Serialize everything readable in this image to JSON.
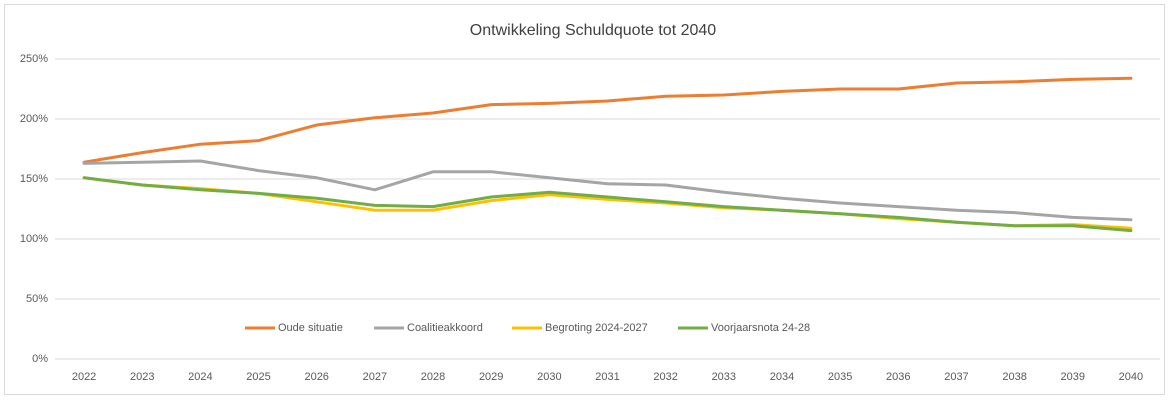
{
  "chart_data": {
    "type": "line",
    "title": "Ontwikkeling Schuldquote tot 2040",
    "categories": [
      "2022",
      "2023",
      "2024",
      "2025",
      "2026",
      "2027",
      "2028",
      "2029",
      "2030",
      "2031",
      "2032",
      "2033",
      "2034",
      "2035",
      "2036",
      "2037",
      "2038",
      "2039",
      "2040"
    ],
    "series": [
      {
        "name": "Oude situatie",
        "color": "#ED7D31",
        "values": [
          164,
          172,
          179,
          182,
          195,
          201,
          205,
          212,
          213,
          215,
          219,
          220,
          223,
          225,
          225,
          230,
          231,
          233,
          234
        ]
      },
      {
        "name": "Coalitieakkoord",
        "color": "#A5A5A5",
        "values": [
          163,
          164,
          165,
          157,
          151,
          141,
          156,
          156,
          151,
          146,
          145,
          139,
          134,
          130,
          127,
          124,
          122,
          118,
          116
        ]
      },
      {
        "name": "Begroting 2024-2027",
        "color": "#FFC000",
        "values": [
          151,
          145,
          142,
          138,
          131,
          124,
          124,
          132,
          137,
          133,
          130,
          126,
          124,
          121,
          117,
          114,
          111,
          112,
          109
        ]
      },
      {
        "name": "Voorjaarsnota 24-28",
        "color": "#70AD47",
        "values": [
          151,
          145,
          141,
          138,
          134,
          128,
          127,
          135,
          139,
          135,
          131,
          127,
          124,
          121,
          118,
          114,
          111,
          111,
          107
        ]
      }
    ],
    "ylim": [
      0,
      250
    ],
    "yticks": [
      {
        "value": 0,
        "label": "0%"
      },
      {
        "value": 50,
        "label": "50%"
      },
      {
        "value": 100,
        "label": "100%"
      },
      {
        "value": 150,
        "label": "150%"
      },
      {
        "value": 200,
        "label": "200%"
      },
      {
        "value": 250,
        "label": "250%"
      }
    ],
    "grid": true
  }
}
